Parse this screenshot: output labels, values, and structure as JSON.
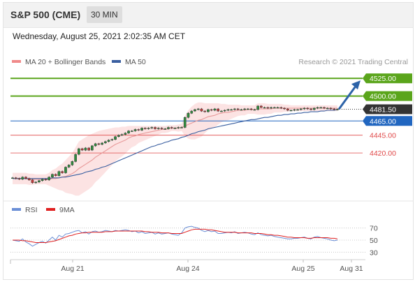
{
  "header": {
    "title": "S&P 500 (CME)",
    "timeframe": "30 MIN"
  },
  "datetime": "Wednesday, August 25, 2021 2:02:35 AM CET",
  "legend": {
    "ma20": "MA 20 + Bollinger Bands",
    "ma50": "MA 50",
    "credit": "Research © 2021 Trading Central",
    "rsi": "RSI",
    "rsi_ma": "9MA"
  },
  "colors": {
    "resistance": "#5aa51b",
    "support": "#e04848",
    "pivot": "#2166c0",
    "current": "#333333",
    "ma20": "#e89a9a",
    "ma50": "#3a5fa0",
    "band_fill": "#fbd9d9",
    "candle_up": "#2f8a3e",
    "candle_down": "#c23b3b",
    "rsi": "#6b8fd6",
    "rsi_ma": "#e02020",
    "arrow": "#2d63a8"
  },
  "levels": [
    {
      "value": 4525.0,
      "label": "4525.00",
      "kind": "resistance"
    },
    {
      "value": 4500.0,
      "label": "4500.00",
      "kind": "resistance"
    },
    {
      "value": 4481.5,
      "label": "4481.50",
      "kind": "current"
    },
    {
      "value": 4465.0,
      "label": "4465.00",
      "kind": "pivot"
    },
    {
      "value": 4445.0,
      "label": "4445.00",
      "kind": "support"
    },
    {
      "value": 4420.0,
      "label": "4420.00",
      "kind": "support"
    }
  ],
  "chart_data": {
    "type": "line",
    "price_ylim": [
      4372,
      4537
    ],
    "x_ticks": [
      "Aug 21",
      "Aug 24",
      "Aug 25",
      "Aug 31"
    ],
    "close": [
      4385,
      4384,
      4383,
      4386,
      4384,
      4382,
      4378,
      4379,
      4381,
      4383,
      4382,
      4386,
      4390,
      4388,
      4394,
      4392,
      4400,
      4403,
      4408,
      4418,
      4426,
      4424,
      4427,
      4424,
      4430,
      4433,
      4432,
      4434,
      4436,
      4438,
      4439,
      4443,
      4445,
      4446,
      4448,
      4451,
      4451,
      4453,
      4452,
      4455,
      4454,
      4455,
      4456,
      4454,
      4455,
      4454,
      4454,
      4456,
      4455,
      4455,
      4456,
      4456,
      4470,
      4476,
      4479,
      4481,
      4482,
      4479,
      4478,
      4481,
      4480,
      4482,
      4479,
      4479,
      4480,
      4481,
      4481,
      4482,
      4481,
      4481,
      4482,
      4482,
      4481,
      4481,
      4486,
      4484,
      4484,
      4483,
      4484,
      4484,
      4484,
      4483,
      4482,
      4480,
      4480,
      4481,
      4481,
      4482,
      4483,
      4482,
      4481,
      4483,
      4484,
      4484,
      4483,
      4483,
      4482,
      4481,
      4481.5
    ],
    "ma20": [
      4384,
      4384,
      4384,
      4384,
      4384,
      4383,
      4383,
      4383,
      4383,
      4383,
      4383,
      4383,
      4384,
      4384,
      4385,
      4386,
      4387,
      4389,
      4391,
      4394,
      4398,
      4401,
      4404,
      4407,
      4410,
      4414,
      4417,
      4420,
      4423,
      4426,
      4429,
      4432,
      4434,
      4436,
      4438,
      4441,
      4443,
      4444,
      4446,
      4447,
      4448,
      4449,
      4450,
      4451,
      4452,
      4453,
      4453,
      4454,
      4455,
      4455,
      4455,
      4456,
      4458,
      4460,
      4462,
      4464,
      4466,
      4467,
      4469,
      4471,
      4472,
      4473,
      4475,
      4476,
      4477,
      4477,
      4478,
      4479,
      4480,
      4480,
      4480,
      4481,
      4481,
      4481,
      4482,
      4482,
      4482,
      4482,
      4482,
      4483,
      4483,
      4483,
      4483,
      4483,
      4483,
      4483,
      4483,
      4483,
      4483,
      4483,
      4483,
      4483,
      4483,
      4483,
      4483,
      4483,
      4483,
      4483,
      4483
    ],
    "bb_upper": [
      4392,
      4392,
      4392,
      4392,
      4392,
      4391,
      4391,
      4390,
      4390,
      4390,
      4390,
      4392,
      4396,
      4398,
      4402,
      4405,
      4410,
      4415,
      4420,
      4428,
      4436,
      4439,
      4442,
      4445,
      4447,
      4449,
      4451,
      4452,
      4453,
      4454,
      4455,
      4456,
      4456,
      4457,
      4457,
      4458,
      4458,
      4458,
      4458,
      4458,
      4458,
      4458,
      4458,
      4458,
      4458,
      4458,
      4458,
      4459,
      4459,
      4459,
      4460,
      4461,
      4472,
      4480,
      4485,
      4489,
      4491,
      4491,
      4490,
      4490,
      4490,
      4490,
      4490,
      4489,
      4489,
      4488,
      4488,
      4488,
      4488,
      4487,
      4487,
      4487,
      4487,
      4487,
      4490,
      4490,
      4490,
      4489,
      4489,
      4489,
      4489,
      4489,
      4488,
      4488,
      4487,
      4487,
      4487,
      4487,
      4487,
      4487,
      4487,
      4487,
      4487,
      4487,
      4487,
      4487,
      4487,
      4487,
      4487
    ],
    "bb_lower": [
      4376,
      4376,
      4376,
      4376,
      4376,
      4375,
      4375,
      4376,
      4376,
      4376,
      4376,
      4374,
      4372,
      4370,
      4368,
      4367,
      4364,
      4363,
      4362,
      4360,
      4360,
      4363,
      4366,
      4369,
      4373,
      4379,
      4383,
      4388,
      4393,
      4398,
      4403,
      4408,
      4412,
      4415,
      4419,
      4424,
      4428,
      4430,
      4434,
      4436,
      4438,
      4440,
      4442,
      4444,
      4446,
      4448,
      4448,
      4449,
      4451,
      4451,
      4450,
      4451,
      4444,
      4440,
      4439,
      4439,
      4441,
      4443,
      4448,
      4452,
      4454,
      4456,
      4460,
      4463,
      4465,
      4466,
      4468,
      4470,
      4472,
      4473,
      4473,
      4475,
      4475,
      4475,
      4474,
      4474,
      4474,
      4475,
      4475,
      4477,
      4477,
      4477,
      4478,
      4478,
      4479,
      4479,
      4479,
      4479,
      4479,
      4479,
      4479,
      4479,
      4479,
      4479,
      4479,
      4479,
      4479,
      4479,
      4479
    ],
    "ma50": [
      4384,
      4384,
      4384,
      4384,
      4384,
      4384,
      4384,
      4384,
      4384,
      4384,
      4384,
      4384,
      4385,
      4385,
      4385,
      4386,
      4386,
      4387,
      4388,
      4389,
      4390,
      4391,
      4393,
      4394,
      4395,
      4397,
      4398,
      4400,
      4401,
      4403,
      4405,
      4407,
      4409,
      4411,
      4413,
      4415,
      4417,
      4419,
      4421,
      4423,
      4425,
      4427,
      4429,
      4430,
      4432,
      4433,
      4435,
      4436,
      4438,
      4439,
      4440,
      4442,
      4443,
      4445,
      4447,
      4448,
      4450,
      4451,
      4452,
      4454,
      4455,
      4456,
      4457,
      4458,
      4459,
      4460,
      4461,
      4462,
      4463,
      4464,
      4465,
      4466,
      4467,
      4467,
      4468,
      4469,
      4470,
      4470,
      4471,
      4472,
      4473,
      4473,
      4474,
      4474,
      4475,
      4475,
      4476,
      4476,
      4477,
      4477,
      4478,
      4478,
      4478,
      4479,
      4479,
      4480,
      4480,
      4480,
      4481
    ],
    "rsi_ylim": [
      20,
      80
    ],
    "rsi_ticks": [
      70,
      50,
      30
    ],
    "rsi": [
      50,
      49,
      48,
      52,
      47,
      44,
      40,
      43,
      46,
      48,
      45,
      50,
      55,
      50,
      58,
      55,
      60,
      61,
      63,
      65,
      66,
      62,
      64,
      60,
      64,
      65,
      63,
      64,
      66,
      65,
      64,
      66,
      65,
      66,
      67,
      66,
      64,
      65,
      62,
      64,
      61,
      62,
      63,
      60,
      62,
      60,
      61,
      62,
      60,
      59,
      58,
      62,
      70,
      72,
      73,
      71,
      70,
      66,
      64,
      66,
      64,
      65,
      61,
      61,
      62,
      63,
      62,
      64,
      61,
      62,
      63,
      62,
      60,
      59,
      62,
      59,
      58,
      57,
      58,
      56,
      55,
      54,
      53,
      52,
      52,
      53,
      53,
      54,
      55,
      53,
      52,
      55,
      56,
      54,
      53,
      52,
      50,
      49,
      50
    ],
    "rsi_ma9": [
      50,
      50,
      50,
      49,
      49,
      48,
      47,
      46,
      46,
      46,
      46,
      47,
      48,
      49,
      51,
      53,
      55,
      57,
      58,
      60,
      61,
      62,
      62,
      63,
      63,
      63,
      63,
      63,
      64,
      64,
      64,
      65,
      65,
      65,
      65,
      65,
      65,
      65,
      65,
      65,
      64,
      64,
      63,
      63,
      63,
      62,
      62,
      62,
      61,
      61,
      61,
      61,
      63,
      65,
      67,
      68,
      68,
      68,
      68,
      67,
      67,
      66,
      65,
      64,
      63,
      63,
      63,
      63,
      62,
      62,
      62,
      62,
      62,
      61,
      61,
      61,
      60,
      59,
      59,
      58,
      58,
      57,
      56,
      55,
      55,
      54,
      54,
      54,
      54,
      53,
      53,
      54,
      54,
      54,
      54,
      54,
      53,
      53,
      52
    ],
    "forecast_target": 4525.0
  }
}
